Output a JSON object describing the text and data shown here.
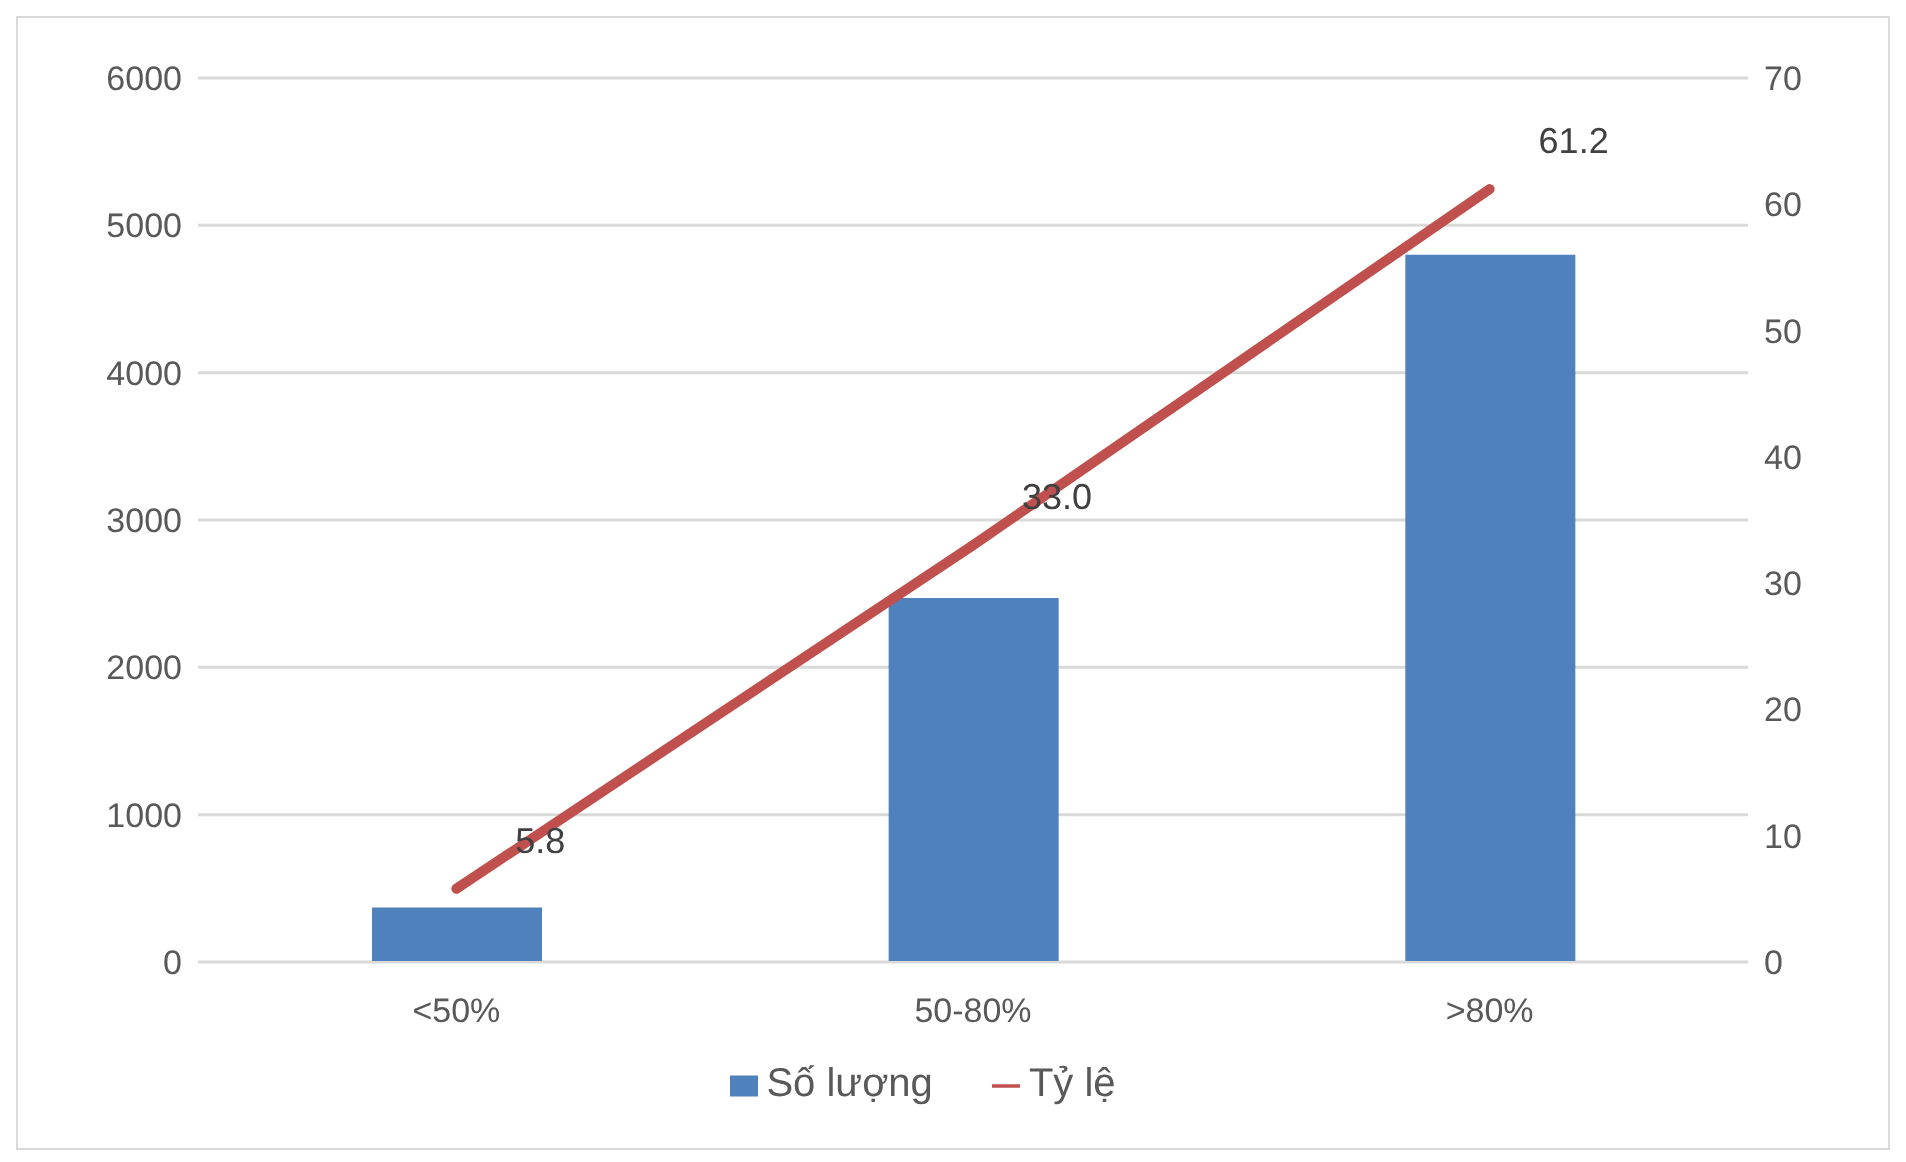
{
  "chart_data": {
    "type": "bar",
    "categories": [
      "<50%",
      "50-80%",
      ">80%"
    ],
    "series": [
      {
        "name": "Số lượng",
        "color": "#4f81bd",
        "values": [
          370,
          2470,
          4800
        ]
      },
      {
        "name": "Tỷ lệ",
        "type": "line",
        "axis": "y2",
        "color": "#c0504d",
        "values": [
          5.8,
          33.0,
          61.2
        ],
        "value_labels": [
          "5.8",
          "33.0",
          "61.2"
        ]
      }
    ],
    "ylim": [
      0,
      6000
    ],
    "yticks": [
      0,
      1000,
      2000,
      3000,
      4000,
      5000,
      6000
    ],
    "y2lim": [
      0,
      70
    ],
    "y2ticks": [
      0,
      10,
      20,
      30,
      40,
      50,
      60,
      70
    ],
    "grid": "y",
    "legend": "bottom",
    "marker": "none"
  }
}
